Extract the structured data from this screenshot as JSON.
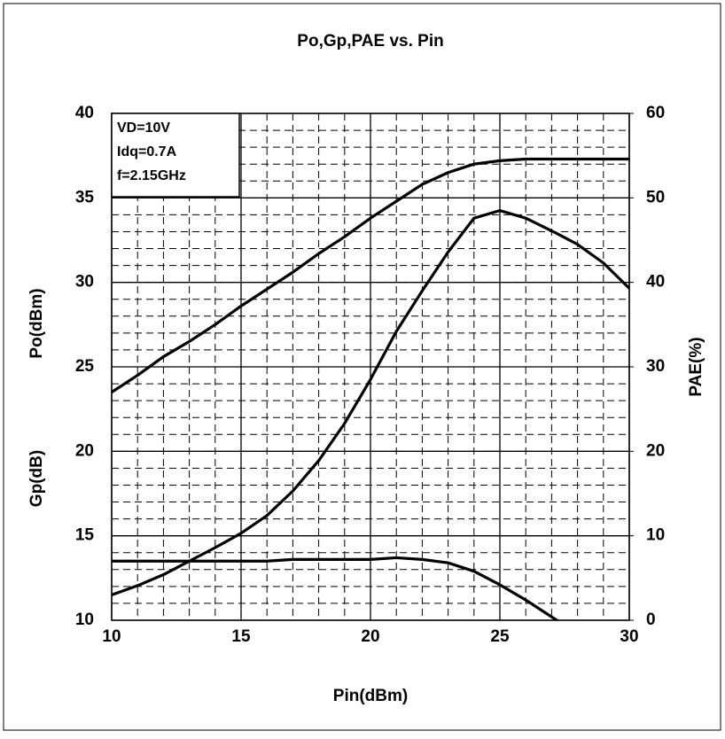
{
  "chart_data": {
    "type": "line",
    "title": "Po,Gp,PAE vs. Pin",
    "x_label": "Pin(dBm)",
    "y_labels": [
      "Gp(dB)",
      "Po(dBm)"
    ],
    "y2_label": "PAE(%)",
    "annotations": [
      "VD=10V",
      "Idq=0.7A",
      "f=2.15GHz"
    ],
    "x": [
      10,
      11,
      12,
      13,
      14,
      15,
      16,
      17,
      18,
      19,
      20,
      21,
      22,
      23,
      24,
      25,
      26,
      27,
      28,
      29,
      30
    ],
    "series": [
      {
        "color": "#000000",
        "values": [
          23.5,
          24.5,
          25.6,
          26.5,
          27.5,
          28.6,
          29.6,
          30.6,
          31.7,
          32.7,
          33.8,
          34.8,
          35.8,
          36.5,
          37.0,
          37.2,
          37.3,
          37.3,
          37.3,
          37.3,
          37.3
        ]
      },
      {
        "color": "#000000",
        "values": [
          13.5,
          13.5,
          13.5,
          13.5,
          13.5,
          13.5,
          13.5,
          13.6,
          13.6,
          13.6,
          13.6,
          13.7,
          13.6,
          13.4,
          12.9,
          12.1,
          11.2,
          10.2,
          9.2,
          null,
          null
        ]
      },
      {
        "color": "#000000",
        "axis": "y2",
        "values": [
          3.0,
          4.1,
          5.4,
          7.0,
          8.6,
          10.3,
          12.4,
          15.3,
          18.9,
          23.3,
          28.5,
          34.2,
          39.0,
          43.6,
          47.6,
          48.5,
          47.6,
          46.1,
          44.5,
          42.3,
          39.3
        ]
      }
    ],
    "xlim": [
      10,
      30
    ],
    "xticks": [
      10,
      15,
      20,
      25,
      30
    ],
    "ylim": [
      10,
      40
    ],
    "yticks": [
      10,
      15,
      20,
      25,
      30,
      35,
      40
    ],
    "y2lim": [
      0,
      60
    ],
    "y2ticks": [
      0,
      10,
      20,
      30,
      40,
      50,
      60
    ],
    "grid": true,
    "minor_grid_step": 1
  }
}
